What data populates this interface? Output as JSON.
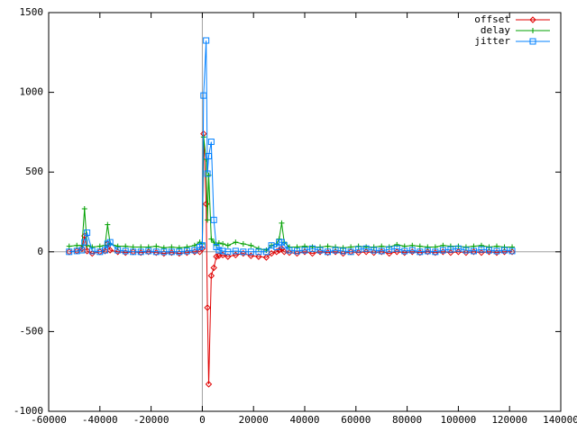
{
  "chart_data": {
    "type": "line",
    "x": [
      -52000,
      -49000,
      -47000,
      -46000,
      -45000,
      -43000,
      -40000,
      -38000,
      -37000,
      -36000,
      -33000,
      -30000,
      -27000,
      -24000,
      -21000,
      -18000,
      -15000,
      -12000,
      -9000,
      -6000,
      -3000,
      -1000,
      0,
      500,
      1500,
      2000,
      2500,
      3500,
      4500,
      5500,
      6500,
      8000,
      10000,
      13000,
      16000,
      19000,
      22000,
      25000,
      27000,
      29000,
      30000,
      31000,
      32000,
      34000,
      37000,
      40000,
      43000,
      46000,
      49000,
      52000,
      55000,
      58000,
      61000,
      64000,
      67000,
      70000,
      73000,
      76000,
      79000,
      82000,
      85000,
      88000,
      91000,
      94000,
      97000,
      100000,
      103000,
      106000,
      109000,
      112000,
      115000,
      118000,
      121000
    ],
    "series": [
      {
        "name": "offset",
        "color": "#e00000",
        "marker": "diamond",
        "values": [
          0,
          5,
          20,
          100,
          5,
          -10,
          0,
          5,
          50,
          10,
          0,
          -5,
          0,
          -5,
          0,
          -5,
          -10,
          -5,
          -10,
          -5,
          0,
          0,
          20,
          740,
          300,
          -350,
          -830,
          -150,
          -100,
          -30,
          -25,
          -20,
          -30,
          -20,
          -10,
          -25,
          -30,
          -35,
          -10,
          0,
          10,
          20,
          0,
          -5,
          -10,
          0,
          -10,
          0,
          -5,
          0,
          -10,
          0,
          -5,
          0,
          -5,
          0,
          -10,
          0,
          -5,
          0,
          -5,
          0,
          -5,
          0,
          -5,
          0,
          -5,
          0,
          -5,
          0,
          -5,
          0,
          0
        ]
      },
      {
        "name": "delay",
        "color": "#00a000",
        "marker": "plus",
        "values": [
          35,
          40,
          40,
          270,
          40,
          30,
          35,
          40,
          170,
          50,
          35,
          35,
          30,
          30,
          30,
          35,
          25,
          30,
          25,
          30,
          40,
          60,
          50,
          720,
          580,
          200,
          480,
          80,
          60,
          40,
          55,
          50,
          40,
          60,
          50,
          40,
          20,
          10,
          40,
          50,
          80,
          180,
          60,
          30,
          30,
          35,
          30,
          30,
          35,
          30,
          25,
          30,
          35,
          30,
          30,
          35,
          30,
          45,
          35,
          40,
          35,
          30,
          30,
          40,
          35,
          35,
          30,
          35,
          40,
          30,
          35,
          30,
          30
        ]
      },
      {
        "name": "jitter",
        "color": "#0080ff",
        "marker": "square",
        "values": [
          0,
          5,
          10,
          60,
          120,
          5,
          0,
          10,
          50,
          60,
          10,
          5,
          0,
          0,
          5,
          0,
          0,
          0,
          0,
          5,
          10,
          30,
          40,
          980,
          1325,
          490,
          600,
          690,
          200,
          30,
          10,
          5,
          0,
          5,
          0,
          0,
          0,
          0,
          40,
          30,
          60,
          60,
          40,
          10,
          5,
          10,
          20,
          10,
          0,
          10,
          5,
          0,
          15,
          20,
          10,
          5,
          15,
          20,
          5,
          10,
          0,
          5,
          0,
          10,
          15,
          20,
          10,
          5,
          15,
          10,
          5,
          10,
          5
        ]
      }
    ],
    "xlim": [
      -60000,
      140000
    ],
    "xticks": [
      -60000,
      -40000,
      -20000,
      0,
      20000,
      40000,
      60000,
      80000,
      100000,
      120000,
      140000
    ],
    "ylim": [
      -1000,
      1500
    ],
    "yticks": [
      -1000,
      -500,
      0,
      500,
      1000,
      1500
    ],
    "zero_axes": true,
    "legend": "top-right"
  }
}
